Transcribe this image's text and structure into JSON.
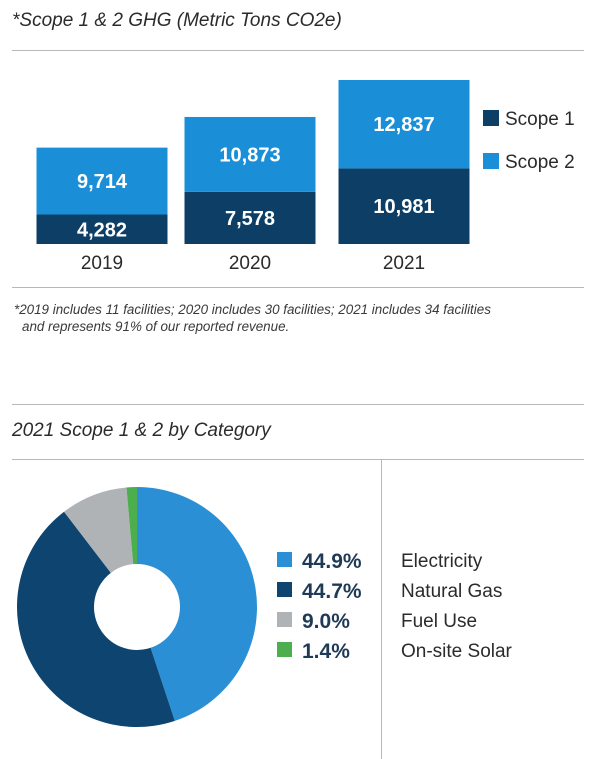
{
  "chart_data": [
    {
      "type": "bar",
      "stacked": true,
      "title": "*Scope 1 & 2 GHG (Metric Tons CO2e)",
      "categories": [
        "2019",
        "2020",
        "2021"
      ],
      "series": [
        {
          "name": "Scope 1",
          "values": [
            4282,
            7578,
            10981
          ],
          "labels": [
            "4,282",
            "7,578",
            "10,981"
          ],
          "color": "#0d3f66"
        },
        {
          "name": "Scope 2",
          "values": [
            9714,
            10873,
            12837
          ],
          "labels": [
            "9,714",
            "10,873",
            "12,837"
          ],
          "color": "#1a8fd8"
        }
      ],
      "legend_position": "right",
      "grid": false,
      "footnote": [
        "*2019 includes 11 facilities; 2020 includes 30 facilities; 2021 includes 34 facilities",
        "and represents 91% of our reported revenue."
      ]
    },
    {
      "type": "pie",
      "donut": true,
      "title": "2021 Scope 1 & 2 by Category",
      "slices": [
        {
          "label": "Electricity",
          "value": 44.9,
          "pct_label": "44.9%",
          "color": "#2a8fd4"
        },
        {
          "label": "Natural Gas",
          "value": 44.7,
          "pct_label": "44.7%",
          "color": "#0d4470"
        },
        {
          "label": "Fuel Use",
          "value": 9.0,
          "pct_label": "9.0%",
          "color": "#afb3b6"
        },
        {
          "label": "On-site Solar",
          "value": 1.4,
          "pct_label": "1.4%",
          "color": "#4cae4c"
        }
      ],
      "legend_position": "right"
    }
  ]
}
